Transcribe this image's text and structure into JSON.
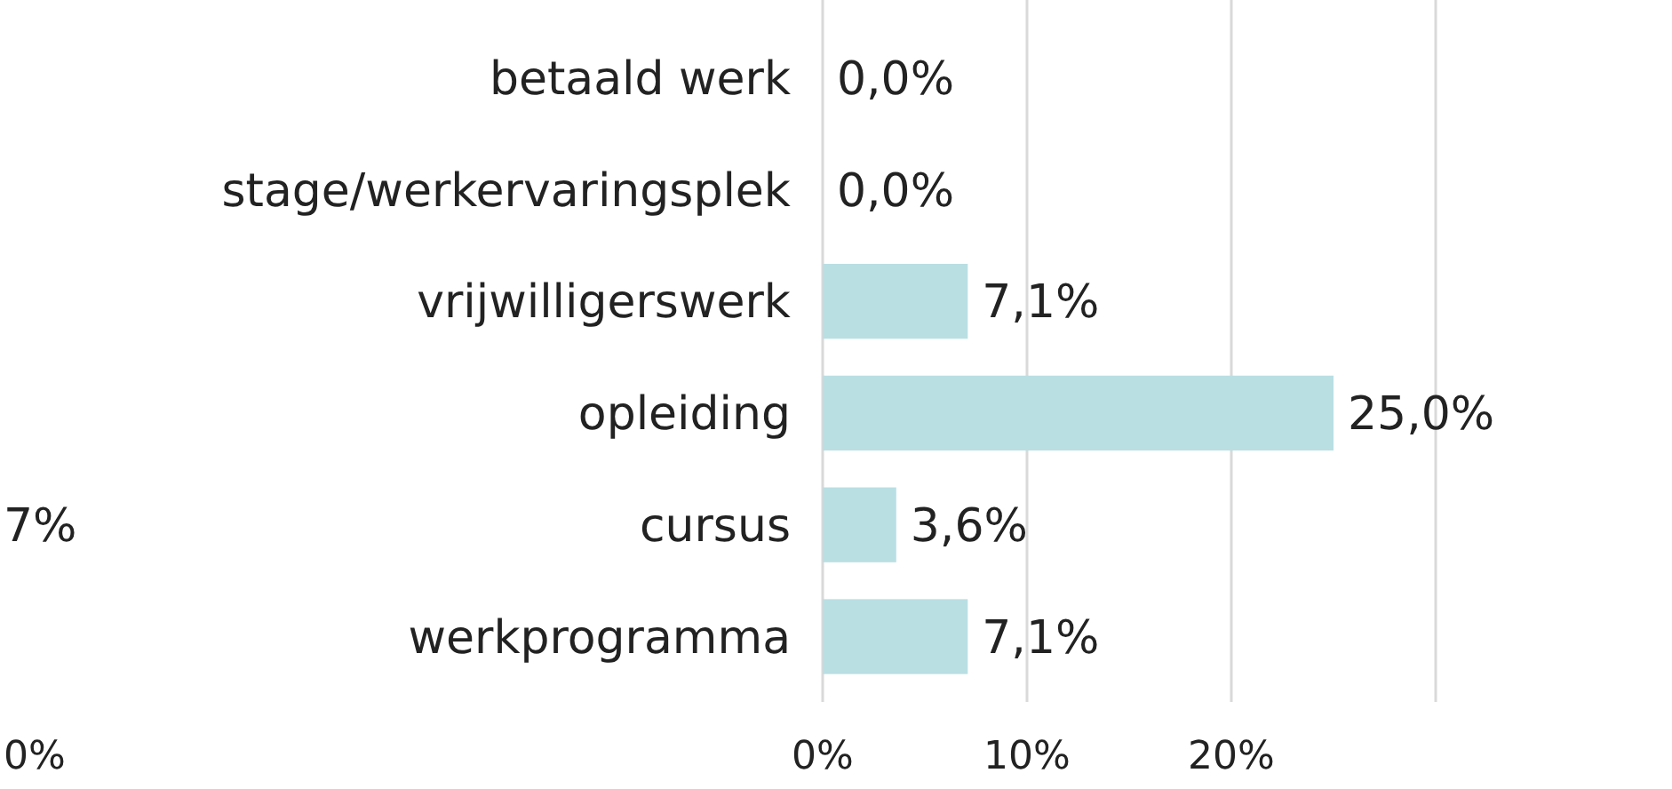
{
  "chart_data": {
    "type": "bar",
    "orientation": "horizontal",
    "categories": [
      "betaald werk",
      "stage/werkervaringsplek",
      "vrijwilligerswerk",
      "opleiding",
      "cursus",
      "werkprogramma"
    ],
    "values": [
      0.0,
      0.0,
      7.1,
      25.0,
      3.6,
      7.1
    ],
    "value_labels": [
      "0,0%",
      "0,0%",
      "7,1%",
      "25,0%",
      "3,6%",
      "7,1%"
    ],
    "color": "#b9dfe3",
    "xlim": [
      0,
      30
    ],
    "xticks": [
      {
        "value": 0,
        "label": "0%"
      },
      {
        "value": 10,
        "label": "10%"
      },
      {
        "value": 20,
        "label": "20%"
      },
      {
        "value": 30,
        "label": null
      }
    ],
    "grid": "x",
    "annotations": [
      "7%",
      "0%"
    ]
  }
}
